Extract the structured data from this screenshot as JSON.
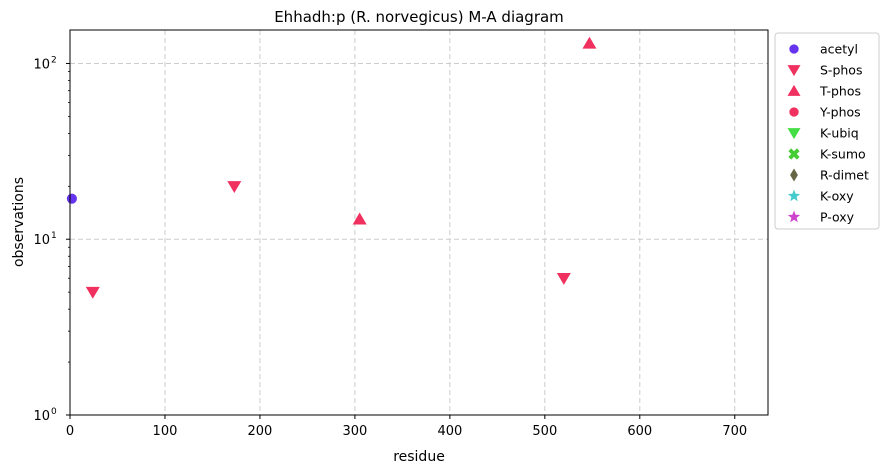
{
  "chart_data": {
    "type": "scatter",
    "title": "Ehhadh:p (R. norvegicus) M-A diagram",
    "xlabel": "residue",
    "ylabel": "observations",
    "xlim": [
      0,
      735
    ],
    "ylim": [
      1,
      155
    ],
    "yscale": "log",
    "grid": true,
    "legend_position": "outside-right-top",
    "x_ticks": [
      0,
      100,
      200,
      300,
      400,
      500,
      600,
      700
    ],
    "y_ticks": [
      {
        "value": 1,
        "label_base": "10",
        "label_exp": "0"
      },
      {
        "value": 10,
        "label_base": "10",
        "label_exp": "1"
      },
      {
        "value": 100,
        "label_base": "10",
        "label_exp": "2"
      }
    ],
    "series": [
      {
        "name": "acetyl",
        "marker": "circle",
        "color": "#6633ee",
        "points": [
          {
            "x": 2,
            "y": 17
          }
        ]
      },
      {
        "name": "S-phos",
        "marker": "triangle-down",
        "color": "#f0305f",
        "points": [
          {
            "x": 24,
            "y": 5
          },
          {
            "x": 173,
            "y": 20
          },
          {
            "x": 520,
            "y": 6
          }
        ]
      },
      {
        "name": "T-phos",
        "marker": "triangle-up",
        "color": "#f0305f",
        "points": [
          {
            "x": 305,
            "y": 13
          },
          {
            "x": 547,
            "y": 130
          }
        ]
      },
      {
        "name": "Y-phos",
        "marker": "circle",
        "color": "#f0305f",
        "points": []
      },
      {
        "name": "K-ubiq",
        "marker": "triangle-down",
        "color": "#44dd44",
        "points": []
      },
      {
        "name": "K-sumo",
        "marker": "x",
        "color": "#44cc33",
        "points": []
      },
      {
        "name": "R-dimet",
        "marker": "diamond",
        "color": "#666644",
        "points": []
      },
      {
        "name": "K-oxy",
        "marker": "star",
        "color": "#44cccc",
        "points": []
      },
      {
        "name": "P-oxy",
        "marker": "star",
        "color": "#cc44cc",
        "points": []
      }
    ]
  }
}
